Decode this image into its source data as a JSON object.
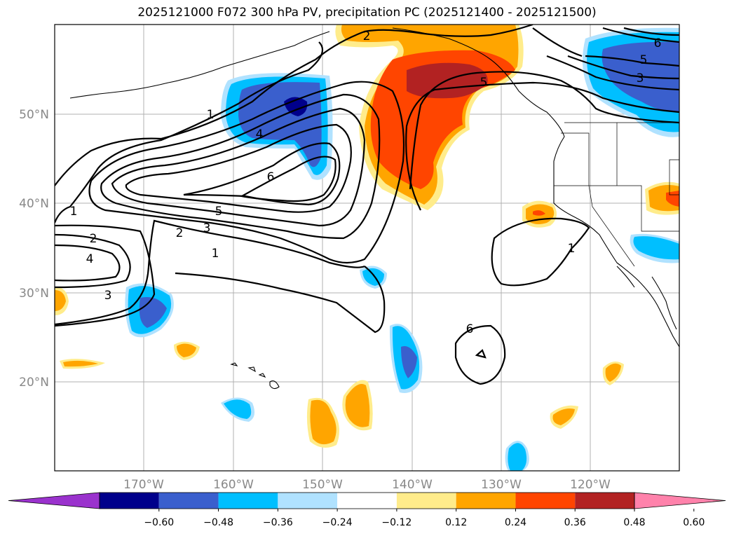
{
  "title": "2025121000 F072 300 hPa PV, precipitation PC (2025121400 - 2025121500)",
  "lat_labels": [
    "50°N",
    "40°N",
    "30°N",
    "20°N"
  ],
  "lon_labels": [
    "170°W",
    "160°W",
    "150°W",
    "140°W",
    "130°W",
    "120°W"
  ],
  "contour_labels": [
    "1",
    "2",
    "3",
    "4",
    "5",
    "6",
    "1",
    "2",
    "3",
    "4",
    "5",
    "6",
    "1",
    "1",
    "2",
    "3",
    "5",
    "6"
  ],
  "colorbar": {
    "ticks": [
      "−0.60",
      "−0.48",
      "−0.36",
      "−0.24",
      "−0.12",
      "0.12",
      "0.24",
      "0.36",
      "0.48",
      "0.60"
    ],
    "colors": [
      "#9a32cd",
      "#00008b",
      "#3a5fcd",
      "#00bfff",
      "#b0e2ff",
      "#ffffff",
      "#ffec8b",
      "#ffa500",
      "#ff4500",
      "#b22222",
      "#ff82ab"
    ]
  }
}
